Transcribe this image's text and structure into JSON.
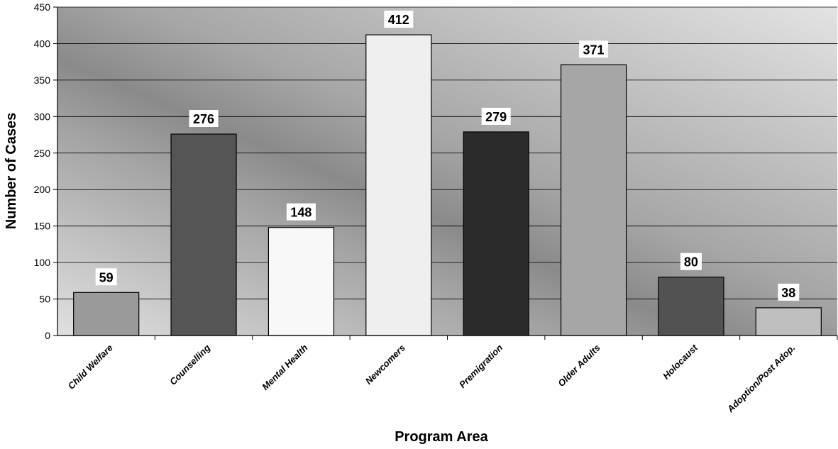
{
  "chart_data": {
    "type": "bar",
    "title": "",
    "xlabel": "Program Area",
    "ylabel": "Number of Cases",
    "categories": [
      "Child Welfare",
      "Counselling",
      "Mental Health",
      "Newcomers",
      "Premigration",
      "Older Adults",
      "Holocaust",
      "Adoption/Post Adop."
    ],
    "values": [
      59,
      276,
      148,
      412,
      279,
      371,
      80,
      38
    ],
    "ylim": [
      0,
      450
    ],
    "yticks": [
      0,
      50,
      100,
      150,
      200,
      250,
      300,
      350,
      400,
      450
    ],
    "grid": true,
    "legend": "none",
    "data_labels": true,
    "bar_colors": [
      "#9a9a9a",
      "#555555",
      "#f8f8f8",
      "#efefef",
      "#2b2b2b",
      "#a6a6a6",
      "#525252",
      "#bfbfbf"
    ],
    "background": "gray-gradient"
  }
}
